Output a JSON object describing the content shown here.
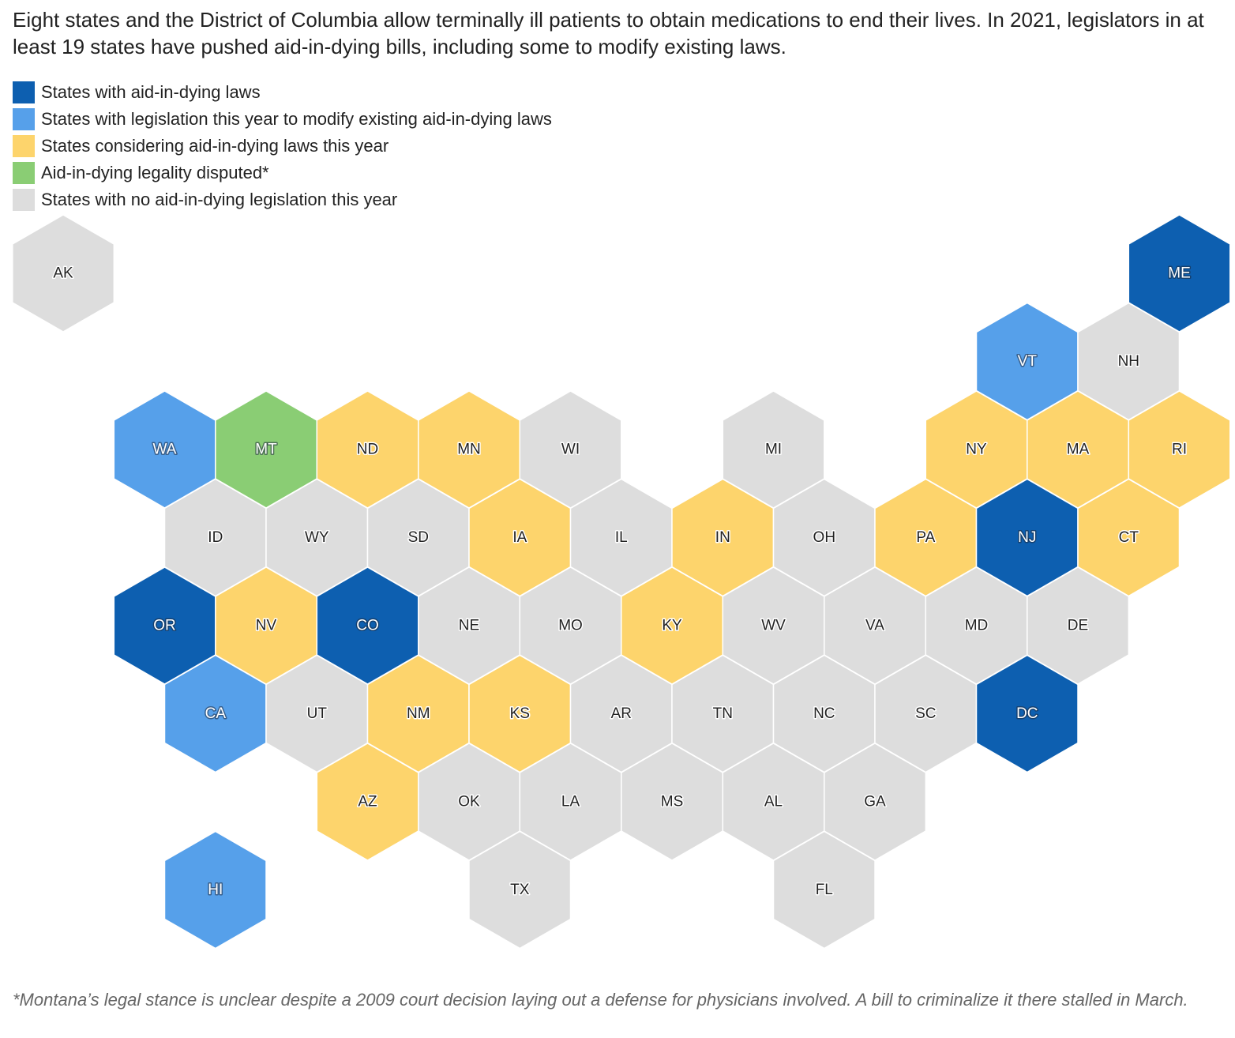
{
  "intro": "Eight states and the District of Columbia allow terminally ill patients to obtain medications to end their lives. In 2021, legislators in at least 19 states have pushed aid-in-dying bills, including some to modify existing laws.",
  "legend": [
    {
      "key": "law",
      "label": "States with aid-in-dying laws",
      "color": "#0d5fb0"
    },
    {
      "key": "modify",
      "label": "States with legislation this year to modify existing aid-in-dying laws",
      "color": "#56a0ea"
    },
    {
      "key": "considering",
      "label": "States considering aid-in-dying laws this year",
      "color": "#fdd46c"
    },
    {
      "key": "disputed",
      "label": "Aid-in-dying legality disputed*",
      "color": "#8acd74"
    },
    {
      "key": "none",
      "label": "States with no aid-in-dying legislation this year",
      "color": "#dddddd"
    }
  ],
  "states": [
    {
      "code": "AK",
      "row": 0,
      "col": 0,
      "status": "none"
    },
    {
      "code": "ME",
      "row": 0,
      "col": 11,
      "status": "law"
    },
    {
      "code": "VT",
      "row": 1,
      "col": 9,
      "status": "modify"
    },
    {
      "code": "NH",
      "row": 1,
      "col": 10,
      "status": "none"
    },
    {
      "code": "WA",
      "row": 2,
      "col": 1,
      "status": "modify"
    },
    {
      "code": "MT",
      "row": 2,
      "col": 2,
      "status": "disputed"
    },
    {
      "code": "ND",
      "row": 2,
      "col": 3,
      "status": "considering"
    },
    {
      "code": "MN",
      "row": 2,
      "col": 4,
      "status": "considering"
    },
    {
      "code": "WI",
      "row": 2,
      "col": 5,
      "status": "none"
    },
    {
      "code": "MI",
      "row": 2,
      "col": 7,
      "status": "none"
    },
    {
      "code": "NY",
      "row": 2,
      "col": 9,
      "status": "considering"
    },
    {
      "code": "MA",
      "row": 2,
      "col": 10,
      "status": "considering"
    },
    {
      "code": "RI",
      "row": 2,
      "col": 11,
      "status": "considering"
    },
    {
      "code": "ID",
      "row": 3,
      "col": 1,
      "status": "none"
    },
    {
      "code": "WY",
      "row": 3,
      "col": 2,
      "status": "none"
    },
    {
      "code": "SD",
      "row": 3,
      "col": 3,
      "status": "none"
    },
    {
      "code": "IA",
      "row": 3,
      "col": 4,
      "status": "considering"
    },
    {
      "code": "IL",
      "row": 3,
      "col": 5,
      "status": "none"
    },
    {
      "code": "IN",
      "row": 3,
      "col": 6,
      "status": "considering"
    },
    {
      "code": "OH",
      "row": 3,
      "col": 7,
      "status": "none"
    },
    {
      "code": "PA",
      "row": 3,
      "col": 8,
      "status": "considering"
    },
    {
      "code": "NJ",
      "row": 3,
      "col": 9,
      "status": "law"
    },
    {
      "code": "CT",
      "row": 3,
      "col": 10,
      "status": "considering"
    },
    {
      "code": "OR",
      "row": 4,
      "col": 1,
      "status": "law"
    },
    {
      "code": "NV",
      "row": 4,
      "col": 2,
      "status": "considering"
    },
    {
      "code": "CO",
      "row": 4,
      "col": 3,
      "status": "law"
    },
    {
      "code": "NE",
      "row": 4,
      "col": 4,
      "status": "none"
    },
    {
      "code": "MO",
      "row": 4,
      "col": 5,
      "status": "none"
    },
    {
      "code": "KY",
      "row": 4,
      "col": 6,
      "status": "considering"
    },
    {
      "code": "WV",
      "row": 4,
      "col": 7,
      "status": "none"
    },
    {
      "code": "VA",
      "row": 4,
      "col": 8,
      "status": "none"
    },
    {
      "code": "MD",
      "row": 4,
      "col": 9,
      "status": "none"
    },
    {
      "code": "DE",
      "row": 4,
      "col": 10,
      "status": "none"
    },
    {
      "code": "CA",
      "row": 5,
      "col": 1,
      "status": "modify"
    },
    {
      "code": "UT",
      "row": 5,
      "col": 2,
      "status": "none"
    },
    {
      "code": "NM",
      "row": 5,
      "col": 3,
      "status": "considering"
    },
    {
      "code": "KS",
      "row": 5,
      "col": 4,
      "status": "considering"
    },
    {
      "code": "AR",
      "row": 5,
      "col": 5,
      "status": "none"
    },
    {
      "code": "TN",
      "row": 5,
      "col": 6,
      "status": "none"
    },
    {
      "code": "NC",
      "row": 5,
      "col": 7,
      "status": "none"
    },
    {
      "code": "SC",
      "row": 5,
      "col": 8,
      "status": "none"
    },
    {
      "code": "DC",
      "row": 5,
      "col": 9,
      "status": "law"
    },
    {
      "code": "AZ",
      "row": 6,
      "col": 3,
      "status": "considering"
    },
    {
      "code": "OK",
      "row": 6,
      "col": 4,
      "status": "none"
    },
    {
      "code": "LA",
      "row": 6,
      "col": 5,
      "status": "none"
    },
    {
      "code": "MS",
      "row": 6,
      "col": 6,
      "status": "none"
    },
    {
      "code": "AL",
      "row": 6,
      "col": 7,
      "status": "none"
    },
    {
      "code": "GA",
      "row": 6,
      "col": 8,
      "status": "none"
    },
    {
      "code": "HI",
      "row": 7,
      "col": 1,
      "status": "modify"
    },
    {
      "code": "TX",
      "row": 7,
      "col": 4,
      "status": "none"
    },
    {
      "code": "FL",
      "row": 7,
      "col": 7,
      "status": "none"
    }
  ],
  "note": "*Montana’s legal stance is unclear despite a 2009 court decision laying out a defense for physicians involved. A bill to criminalize it there stalled in March."
}
